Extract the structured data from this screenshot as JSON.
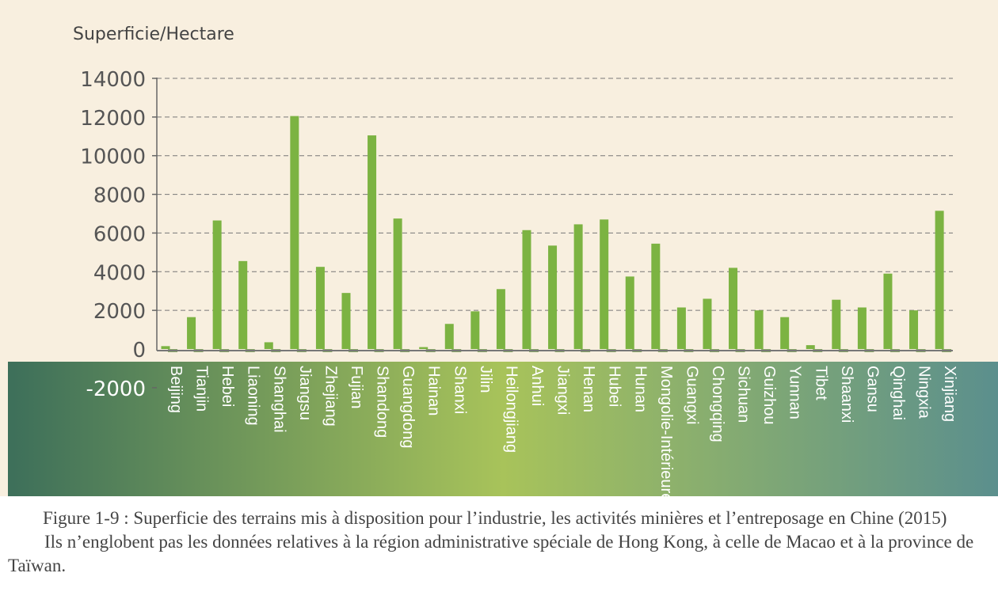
{
  "chart_data": {
    "type": "bar",
    "ylabel": "Superficie/Hectare",
    "ylim": [
      -2000,
      14000
    ],
    "yticks": [
      14000,
      12000,
      10000,
      8000,
      6000,
      4000,
      2000,
      0,
      -2000
    ],
    "grid": true,
    "categories": [
      "Beijing",
      "Tianjin",
      "Hebei",
      "Liaoning",
      "Shanghai",
      "Jiangsu",
      "Zhejiang",
      "Fujian",
      "Shandong",
      "Guangdong",
      "Hainan",
      "Shanxi",
      "Jilin",
      "Heilongjiang",
      "Anhui",
      "Jiangxi",
      "Henan",
      "Hubei",
      "Hunan",
      "Mongolie-Intérieure",
      "Guangxi",
      "Chongqing",
      "Sichuan",
      "Guizhou",
      "Yunnan",
      "Tibet",
      "Shaanxi",
      "Gansu",
      "Qinghai",
      "Ningxia",
      "Xinjiang"
    ],
    "values": [
      150,
      1650,
      6650,
      4550,
      350,
      12050,
      4250,
      2900,
      11050,
      6750,
      100,
      1300,
      1950,
      3100,
      6150,
      5350,
      6450,
      6700,
      3750,
      5450,
      2150,
      2600,
      4200,
      2000,
      1650,
      200,
      2550,
      2150,
      3900,
      2000,
      7150
    ],
    "colors": {
      "bar": "#7cb342",
      "panel": "#f8efdf",
      "band_left": "#3d6f5a",
      "band_mid": "#a9c25a",
      "band_right": "#5a8f8a"
    }
  },
  "caption": {
    "line1": "Figure 1-9 : Superficie des terrains mis à disposition pour l’industrie, les activités minières et l’entreposage en Chine (2015)",
    "line2": "Ils n’englobent pas les données relatives à la région administrative spéciale de Hong Kong, à celle de Macao et à la province de Taïwan."
  }
}
